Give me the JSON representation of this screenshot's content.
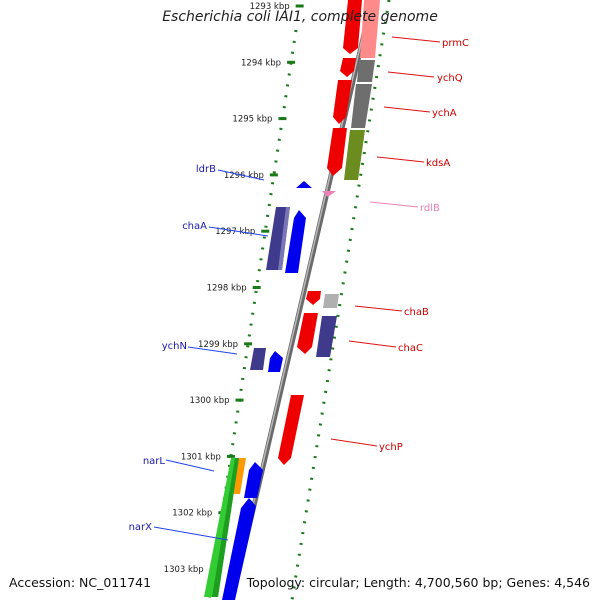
{
  "title": "Escherichia coli IAI1, complete genome",
  "footer": {
    "accession": "Accession: NC_011741",
    "stats": "Topology: circular; Length: 4,700,560 bp; Genes: 4,546"
  },
  "ticks": [
    "1293 kbp",
    "1294 kbp",
    "1295 kbp",
    "1296 kbp",
    "1297 kbp",
    "1298 kbp",
    "1299 kbp",
    "1300 kbp",
    "1301 kbp",
    "1302 kbp",
    "1303 kbp"
  ],
  "genes_left": [
    {
      "label": "ldrB",
      "color": "#0000e6"
    },
    {
      "label": "chaA",
      "color": "#0000e6"
    },
    {
      "label": "ychN",
      "color": "#0000e6"
    },
    {
      "label": "narL",
      "color": "#0000e6"
    },
    {
      "label": "narX",
      "color": "#0000e6"
    }
  ],
  "genes_right": [
    {
      "label": "prmC",
      "color": "#e60000"
    },
    {
      "label": "ychQ",
      "color": "#e60000"
    },
    {
      "label": "ychA",
      "color": "#e60000"
    },
    {
      "label": "kdsA",
      "color": "#e60000"
    },
    {
      "label": "rdlB",
      "color": "#ee82b4"
    },
    {
      "label": "chaB",
      "color": "#e60000"
    },
    {
      "label": "chaC",
      "color": "#e60000"
    },
    {
      "label": "ychP",
      "color": "#e60000"
    }
  ],
  "colors": {
    "tick": "#1a7a1a",
    "backbone": "#8c8c8c",
    "gene_forward": "#ff0000",
    "gene_reverse": "#0000ff",
    "protein_dark": "#3f3a8c",
    "grey_block": "#6e6e6e",
    "olive_block": "#6b8c1e",
    "pink_block": "#ff8a8a",
    "green_block": "#33cc33",
    "orange_block": "#ff9900"
  }
}
